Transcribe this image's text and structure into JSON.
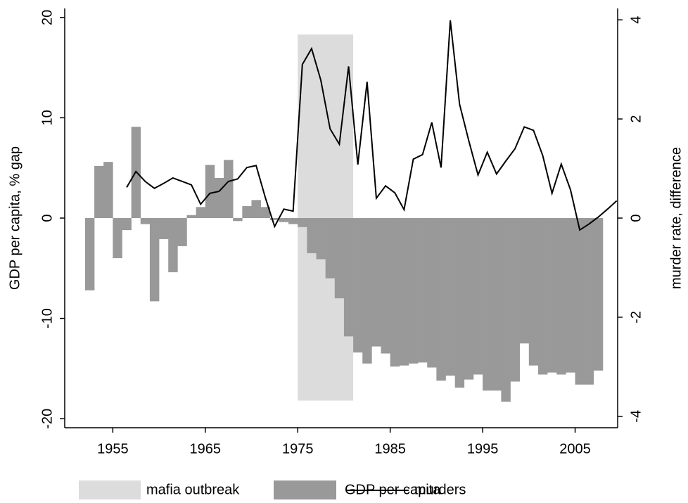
{
  "chart_data": {
    "type": "bar-line",
    "y_label": "GDP per capita, % gap",
    "y2_label": "murder rate, difference",
    "xlim": [
      1949.8,
      2009.6
    ],
    "xticks": [
      1955,
      1965,
      1975,
      1985,
      1995,
      2005
    ],
    "ylim": [
      -20.9,
      20.9
    ],
    "yticks": [
      -20,
      -10,
      0,
      10,
      20
    ],
    "y2lim": [
      -4.23,
      4.23
    ],
    "y2ticks": [
      -4,
      -2,
      0,
      2,
      4
    ],
    "shade": {
      "name": "mafia outbreak",
      "color": "#dcdcdc",
      "x": [
        1975,
        1981
      ],
      "y": [
        -18.2,
        18.3
      ]
    },
    "series": [
      {
        "name": "GDP per capita",
        "type": "bar",
        "color": "#999999",
        "x": [
          1952,
          1953,
          1954,
          1955,
          1956,
          1957,
          1958,
          1959,
          1960,
          1961,
          1962,
          1963,
          1964,
          1965,
          1966,
          1967,
          1968,
          1969,
          1970,
          1971,
          1972,
          1973,
          1974,
          1975,
          1976,
          1977,
          1978,
          1979,
          1980,
          1981,
          1982,
          1983,
          1984,
          1985,
          1986,
          1987,
          1988,
          1989,
          1990,
          1991,
          1992,
          1993,
          1994,
          1995,
          1996,
          1997,
          1998,
          1999,
          2000,
          2001,
          2002,
          2003,
          2004,
          2005,
          2006,
          2007
        ],
        "values": [
          -7.2,
          5.2,
          5.6,
          -4.0,
          -1.2,
          9.1,
          -0.6,
          -8.3,
          -2.1,
          -5.4,
          -2.8,
          0.3,
          1.1,
          5.3,
          4.0,
          5.8,
          -0.3,
          1.2,
          1.8,
          1.1,
          -0.2,
          -0.4,
          -0.6,
          -0.9,
          -3.5,
          -4.1,
          -6.0,
          -8.0,
          -11.8,
          -13.4,
          -14.5,
          -12.8,
          -13.5,
          -14.8,
          -14.7,
          -14.5,
          -14.4,
          -14.9,
          -16.2,
          -15.7,
          -16.9,
          -16.1,
          -15.6,
          -17.2,
          -17.2,
          -18.3,
          -16.3,
          -12.5,
          -14.7,
          -15.6,
          -15.4,
          -15.6,
          -15.4,
          -16.6,
          -16.6,
          -15.2
        ]
      },
      {
        "name": "murders",
        "type": "line",
        "axis": "y2",
        "color": "#000000",
        "x": [
          1956,
          1957,
          1958,
          1959,
          1960,
          1961,
          1962,
          1963,
          1964,
          1965,
          1966,
          1967,
          1968,
          1969,
          1970,
          1971,
          1972,
          1973,
          1974,
          1975,
          1976,
          1977,
          1978,
          1979,
          1980,
          1981,
          1982,
          1983,
          1984,
          1985,
          1986,
          1987,
          1988,
          1989,
          1990,
          1991,
          1992,
          1993,
          1994,
          1995,
          1996,
          1997,
          1998,
          1999,
          2000,
          2001,
          2002,
          2003,
          2004,
          2005,
          2006,
          2007,
          2008,
          2009
        ],
        "values": [
          0.62,
          0.94,
          0.74,
          0.6,
          0.7,
          0.81,
          0.74,
          0.67,
          0.28,
          0.5,
          0.54,
          0.74,
          0.79,
          1.02,
          1.06,
          0.41,
          -0.17,
          0.18,
          0.14,
          3.1,
          3.42,
          2.78,
          1.8,
          1.49,
          3.06,
          1.08,
          2.75,
          0.4,
          0.65,
          0.51,
          0.17,
          1.19,
          1.28,
          1.93,
          1.02,
          3.99,
          2.3,
          1.56,
          0.87,
          1.33,
          0.89,
          1.15,
          1.4,
          1.84,
          1.77,
          1.26,
          0.5,
          1.09,
          0.57,
          -0.24,
          -0.12,
          0.02,
          0.18,
          0.35
        ]
      }
    ]
  }
}
